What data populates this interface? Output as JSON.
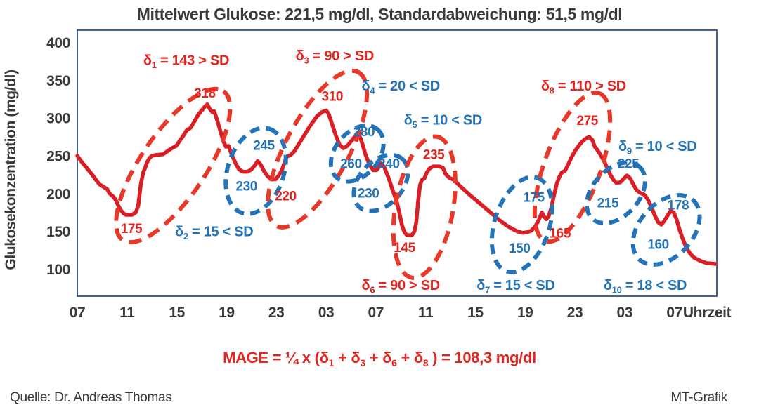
{
  "title": "Mittelwert Glukose: 221,5 mg/dl, Standardabweichung: 51,5 mg/dl",
  "y_axis": {
    "label": "Glukosekonzentration (mg/dl)",
    "ticks": [
      400,
      350,
      300,
      250,
      200,
      150,
      100
    ]
  },
  "x_axis": {
    "tick_labels": [
      "07",
      "11",
      "15",
      "19",
      "23",
      "03",
      "07",
      "11",
      "15",
      "19",
      "23",
      "03",
      "07"
    ],
    "tick_hours": [
      0,
      4,
      8,
      12,
      16,
      20,
      24,
      28,
      32,
      36,
      40,
      44,
      48
    ],
    "unit_label": "Uhrzeit"
  },
  "colors": {
    "curve_red": "#d91e25",
    "dashed_red": "#e8382a",
    "blue": "#2373b9",
    "red_text": "#e2251f",
    "axis_text": "#3a3a39",
    "border": "#44618f"
  },
  "chart_data": {
    "type": "line",
    "xlabel": "Uhrzeit",
    "ylabel": "Glukosekonzentration (mg/dl)",
    "ylim": [
      63,
      420
    ],
    "x_hours_range": [
      0,
      51.5
    ],
    "mean_glucose_mgdl": "221,5",
    "standard_deviation_mgdl": "51,5",
    "series": [
      [
        0,
        250
      ],
      [
        0.4,
        241
      ],
      [
        0.8,
        233
      ],
      [
        1.2,
        225
      ],
      [
        1.5,
        218
      ],
      [
        1.8,
        212
      ],
      [
        2.1,
        209
      ],
      [
        2.4,
        206
      ],
      [
        2.6,
        200
      ],
      [
        2.9,
        196
      ],
      [
        3.1,
        191
      ],
      [
        3.3,
        184
      ],
      [
        3.5,
        178
      ],
      [
        3.7,
        174
      ],
      [
        3.9,
        172
      ],
      [
        4.4,
        172
      ],
      [
        4.7,
        175
      ],
      [
        4.9,
        184
      ],
      [
        5.1,
        212
      ],
      [
        5.3,
        228
      ],
      [
        5.45,
        234
      ],
      [
        5.6,
        241
      ],
      [
        5.8,
        247
      ],
      [
        6.0,
        250
      ],
      [
        6.3,
        251
      ],
      [
        6.9,
        252
      ],
      [
        7.15,
        255
      ],
      [
        7.4,
        258
      ],
      [
        7.7,
        261
      ],
      [
        7.95,
        263
      ],
      [
        8.2,
        269
      ],
      [
        8.5,
        276
      ],
      [
        8.8,
        284
      ],
      [
        9.1,
        287
      ],
      [
        9.4,
        295
      ],
      [
        9.7,
        304
      ],
      [
        10.0,
        310
      ],
      [
        10.25,
        315
      ],
      [
        10.45,
        318
      ],
      [
        10.65,
        312
      ],
      [
        10.85,
        308
      ],
      [
        11.0,
        309
      ],
      [
        11.25,
        297
      ],
      [
        11.5,
        283
      ],
      [
        11.75,
        269
      ],
      [
        11.95,
        262
      ],
      [
        12.15,
        263
      ],
      [
        12.45,
        250
      ],
      [
        12.75,
        239
      ],
      [
        13.0,
        232
      ],
      [
        13.3,
        229
      ],
      [
        13.7,
        229
      ],
      [
        14.0,
        232
      ],
      [
        14.3,
        238
      ],
      [
        14.5,
        243
      ],
      [
        14.75,
        238
      ],
      [
        15.0,
        230
      ],
      [
        15.3,
        223
      ],
      [
        15.6,
        219
      ],
      [
        15.95,
        219
      ],
      [
        16.2,
        224
      ],
      [
        16.45,
        231
      ],
      [
        16.65,
        241
      ],
      [
        16.85,
        249
      ],
      [
        17.15,
        251
      ],
      [
        17.45,
        256
      ],
      [
        17.75,
        264
      ],
      [
        18.05,
        272
      ],
      [
        18.35,
        280
      ],
      [
        18.65,
        288
      ],
      [
        18.95,
        295
      ],
      [
        19.3,
        303
      ],
      [
        19.7,
        308
      ],
      [
        20.0,
        310
      ],
      [
        20.2,
        306
      ],
      [
        20.4,
        296
      ],
      [
        20.6,
        286
      ],
      [
        20.85,
        274
      ],
      [
        21.1,
        264
      ],
      [
        21.4,
        260
      ],
      [
        21.7,
        263
      ],
      [
        22.0,
        269
      ],
      [
        22.25,
        274
      ],
      [
        22.5,
        280
      ],
      [
        22.75,
        274
      ],
      [
        22.95,
        264
      ],
      [
        23.2,
        250
      ],
      [
        23.5,
        238
      ],
      [
        23.8,
        231
      ],
      [
        24.05,
        231
      ],
      [
        24.25,
        235
      ],
      [
        24.45,
        240
      ],
      [
        24.7,
        234
      ],
      [
        24.9,
        226
      ],
      [
        25.1,
        217
      ],
      [
        25.3,
        207
      ],
      [
        25.5,
        198
      ],
      [
        25.7,
        188
      ],
      [
        25.9,
        174
      ],
      [
        26.1,
        158
      ],
      [
        26.3,
        149
      ],
      [
        26.5,
        145
      ],
      [
        26.9,
        145
      ],
      [
        27.1,
        150
      ],
      [
        27.25,
        162
      ],
      [
        27.4,
        190
      ],
      [
        27.55,
        211
      ],
      [
        27.7,
        218
      ],
      [
        27.9,
        220
      ],
      [
        28.1,
        228
      ],
      [
        28.3,
        233
      ],
      [
        28.6,
        236
      ],
      [
        29.1,
        236
      ],
      [
        29.4,
        234
      ],
      [
        29.6,
        226
      ],
      [
        29.9,
        221
      ],
      [
        30.3,
        218
      ],
      [
        30.7,
        211
      ],
      [
        31.1,
        205
      ],
      [
        31.5,
        199
      ],
      [
        32.0,
        192
      ],
      [
        32.5,
        185
      ],
      [
        33.0,
        178
      ],
      [
        33.5,
        171
      ],
      [
        34.0,
        164
      ],
      [
        34.5,
        158
      ],
      [
        35.0,
        153
      ],
      [
        35.4,
        150
      ],
      [
        35.8,
        148
      ],
      [
        36.2,
        149
      ],
      [
        36.5,
        151
      ],
      [
        36.8,
        156
      ],
      [
        37.1,
        165
      ],
      [
        37.35,
        175
      ],
      [
        37.5,
        170
      ],
      [
        37.7,
        166
      ],
      [
        37.9,
        170
      ],
      [
        38.1,
        181
      ],
      [
        38.35,
        200
      ],
      [
        38.55,
        213
      ],
      [
        38.75,
        222
      ],
      [
        38.95,
        228
      ],
      [
        39.2,
        230
      ],
      [
        39.45,
        238
      ],
      [
        39.7,
        247
      ],
      [
        40.0,
        256
      ],
      [
        40.3,
        263
      ],
      [
        40.6,
        269
      ],
      [
        40.9,
        273
      ],
      [
        41.15,
        275
      ],
      [
        41.4,
        271
      ],
      [
        41.6,
        262
      ],
      [
        41.85,
        257
      ],
      [
        42.1,
        250
      ],
      [
        42.35,
        243
      ],
      [
        42.6,
        234
      ],
      [
        42.85,
        225
      ],
      [
        43.1,
        218
      ],
      [
        43.35,
        214
      ],
      [
        43.65,
        215
      ],
      [
        43.95,
        220
      ],
      [
        44.2,
        224
      ],
      [
        44.45,
        220
      ],
      [
        44.7,
        212
      ],
      [
        44.95,
        205
      ],
      [
        45.25,
        201
      ],
      [
        45.55,
        199
      ],
      [
        45.85,
        193
      ],
      [
        46.15,
        182
      ],
      [
        46.45,
        170
      ],
      [
        46.7,
        162
      ],
      [
        46.95,
        159
      ],
      [
        47.2,
        164
      ],
      [
        47.45,
        171
      ],
      [
        47.7,
        177
      ],
      [
        47.95,
        175
      ],
      [
        48.15,
        167
      ],
      [
        48.4,
        153
      ],
      [
        48.65,
        141
      ],
      [
        48.95,
        129
      ],
      [
        49.25,
        121
      ],
      [
        49.6,
        115
      ],
      [
        50.1,
        111
      ],
      [
        50.6,
        108
      ],
      [
        51.3,
        107
      ]
    ],
    "point_labels": [
      {
        "text": "318",
        "color": "red",
        "t": 10.25,
        "v": 333
      },
      {
        "text": "175",
        "color": "red",
        "t": 4.35,
        "v": 154
      },
      {
        "text": "220",
        "color": "red",
        "t": 16.75,
        "v": 197
      },
      {
        "text": "310",
        "color": "red",
        "t": 20.5,
        "v": 329
      },
      {
        "text": "235",
        "color": "red",
        "t": 28.65,
        "v": 252
      },
      {
        "text": "145",
        "color": "red",
        "t": 26.3,
        "v": 129
      },
      {
        "text": "165",
        "color": "red",
        "t": 38.8,
        "v": 148
      },
      {
        "text": "275",
        "color": "red",
        "t": 41.0,
        "v": 297
      },
      {
        "text": "245",
        "color": "blue",
        "t": 15.0,
        "v": 264
      },
      {
        "text": "230",
        "color": "blue",
        "t": 13.6,
        "v": 210
      },
      {
        "text": "280",
        "color": "blue",
        "t": 23.05,
        "v": 282
      },
      {
        "text": "260",
        "color": "blue",
        "t": 22.0,
        "v": 240
      },
      {
        "text": "240",
        "color": "blue",
        "t": 25.05,
        "v": 240
      },
      {
        "text": "230",
        "color": "blue",
        "t": 23.4,
        "v": 201
      },
      {
        "text": "175",
        "color": "blue",
        "t": 36.7,
        "v": 195
      },
      {
        "text": "150",
        "color": "blue",
        "t": 35.55,
        "v": 128
      },
      {
        "text": "225",
        "color": "blue",
        "t": 44.3,
        "v": 240
      },
      {
        "text": "215",
        "color": "blue",
        "t": 42.65,
        "v": 188
      },
      {
        "text": "178",
        "color": "blue",
        "t": 48.3,
        "v": 185
      },
      {
        "text": "160",
        "color": "blue",
        "t": 46.7,
        "v": 133
      }
    ],
    "excursions": [
      {
        "id": "delta-1",
        "sub": "1",
        "delta": "143",
        "cmp": ">",
        "color": "red",
        "label_t": 8.76,
        "label_v": 377,
        "ellipse": {
          "t": 7.7,
          "v": 237,
          "a": 128,
          "b": 46,
          "rot": -56
        }
      },
      {
        "id": "delta-2",
        "sub": "2",
        "delta": "15",
        "cmp": "<",
        "color": "blue",
        "label_t": 11.0,
        "label_v": 150,
        "ellipse": {
          "t": 14.35,
          "v": 230,
          "a": 63,
          "b": 40,
          "rot": -72
        }
      },
      {
        "id": "delta-3",
        "sub": "3",
        "delta": "90",
        "cmp": ">",
        "color": "red",
        "label_t": 20.7,
        "label_v": 383,
        "ellipse": {
          "t": 19.3,
          "v": 259,
          "a": 124,
          "b": 45,
          "rot": -62
        }
      },
      {
        "id": "delta-4",
        "sub": "4",
        "delta": "20",
        "cmp": "<",
        "color": "blue",
        "label_t": 26.0,
        "label_v": 343,
        "ellipse": {
          "t": 22.5,
          "v": 253,
          "a": 45,
          "b": 31,
          "rot": -50
        }
      },
      {
        "id": "delta-5",
        "sub": "5",
        "delta": "10",
        "cmp": "<",
        "color": "blue",
        "label_t": 29.4,
        "label_v": 298,
        "ellipse": {
          "t": 24.4,
          "v": 214,
          "a": 46,
          "b": 31,
          "rot": -48
        }
      },
      {
        "id": "delta-6",
        "sub": "6",
        "delta": "90",
        "cmp": ">",
        "color": "red",
        "label_t": 26.0,
        "label_v": 79,
        "ellipse": {
          "t": 27.9,
          "v": 182,
          "a": 102,
          "b": 41,
          "rot": -80
        }
      },
      {
        "id": "delta-7",
        "sub": "7",
        "delta": "15",
        "cmp": "<",
        "color": "blue",
        "label_t": 35.25,
        "label_v": 79,
        "ellipse": {
          "t": 35.75,
          "v": 159,
          "a": 70,
          "b": 39,
          "rot": -72
        }
      },
      {
        "id": "delta-8",
        "sub": "8",
        "delta": "110",
        "cmp": ">",
        "color": "red",
        "label_t": 40.7,
        "label_v": 343,
        "ellipse": {
          "t": 39.8,
          "v": 235,
          "a": 112,
          "b": 40,
          "rot": -70
        }
      },
      {
        "id": "delta-9",
        "sub": "9",
        "delta": "10",
        "cmp": "<",
        "color": "blue",
        "label_t": 46.65,
        "label_v": 263,
        "ellipse": {
          "t": 43.3,
          "v": 201,
          "a": 50,
          "b": 33,
          "rot": -48
        }
      },
      {
        "id": "delta-10",
        "sub": "10",
        "delta": "18",
        "cmp": "<",
        "color": "blue",
        "label_t": 45.65,
        "label_v": 79,
        "ellipse": {
          "t": 47.35,
          "v": 152,
          "a": 57,
          "b": 38,
          "rot": -48
        }
      }
    ]
  },
  "mage_formula": {
    "parts": [
      {
        "t": "MAGE = ¼ x (δ"
      },
      {
        "s": "1"
      },
      {
        "t": " + δ"
      },
      {
        "s": "3"
      },
      {
        "t": " + δ"
      },
      {
        "s": "6"
      },
      {
        "t": " + δ"
      },
      {
        "s": "8"
      },
      {
        "t": " ) = 108,3 mg/dl"
      }
    ],
    "result": "108,3 mg/dl"
  },
  "footer": {
    "source": "Quelle: Dr. Andreas Thomas",
    "credit": "MT-Grafik"
  }
}
